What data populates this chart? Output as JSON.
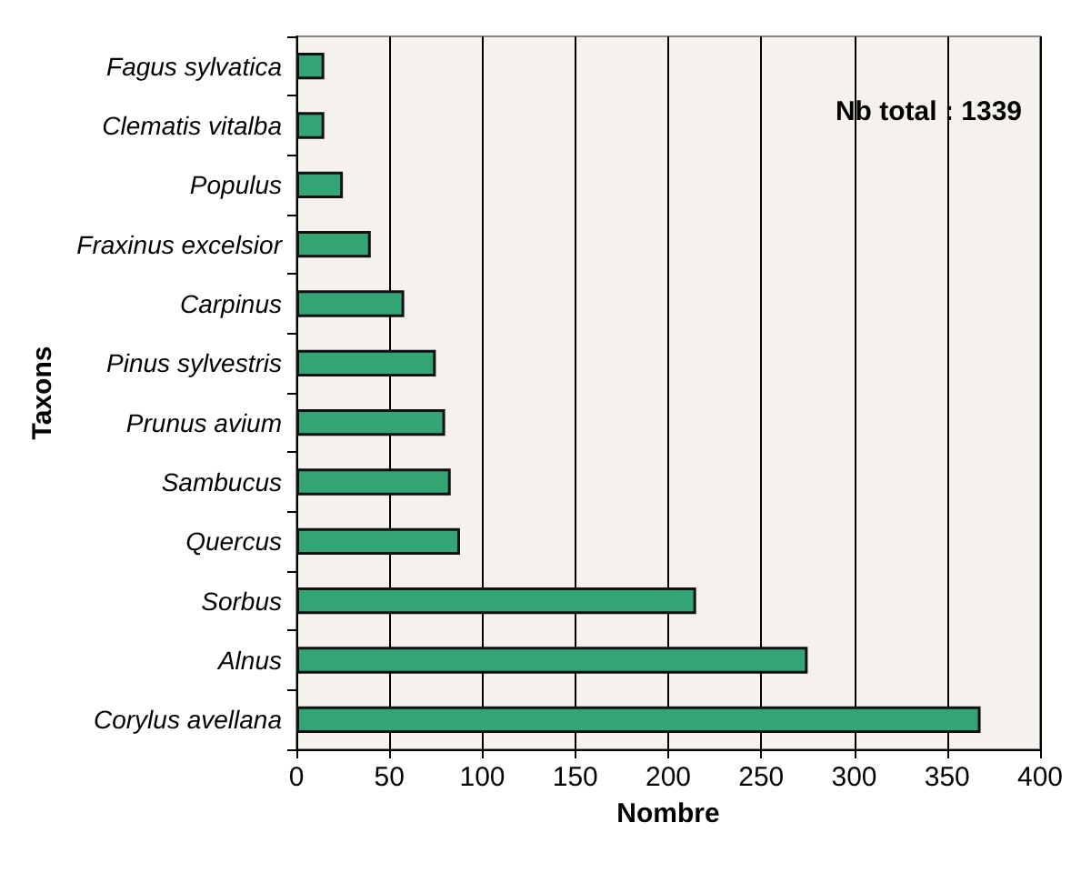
{
  "chart_data": {
    "type": "bar",
    "orientation": "horizontal",
    "xlabel": "Nombre",
    "ylabel": "Taxons",
    "categories": [
      "Fagus sylvatica",
      "Clematis vitalba",
      "Populus",
      "Fraxinus excelsior",
      "Carpinus",
      "Pinus sylvestris",
      "Prunus avium",
      "Sambucus",
      "Quercus",
      "Sorbus",
      "Alnus",
      "Corylus avellana"
    ],
    "values": [
      15,
      15,
      25,
      40,
      58,
      75,
      80,
      83,
      88,
      215,
      275,
      368
    ],
    "color": "#33a474",
    "xlim": [
      0,
      400
    ],
    "xticks": [
      0,
      50,
      100,
      150,
      200,
      250,
      300,
      350,
      400
    ],
    "grid": "x",
    "annotations": [
      "Nb total : 1339"
    ]
  }
}
